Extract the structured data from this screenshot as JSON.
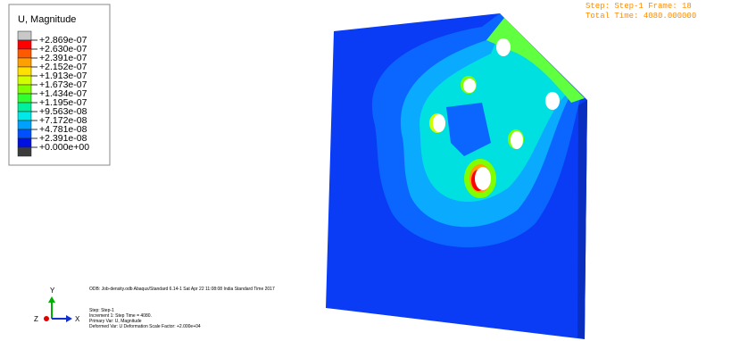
{
  "legend": {
    "title": "U, Magnitude",
    "labels": [
      "+2.869e-07",
      "+2.630e-07",
      "+2.391e-07",
      "+2.152e-07",
      "+1.913e-07",
      "+1.673e-07",
      "+1.434e-07",
      "+1.195e-07",
      "+9.563e-08",
      "+7.172e-08",
      "+4.781e-08",
      "+2.391e-08",
      "+0.000e+00"
    ],
    "colors": [
      "#c8c8c8",
      "#ff0000",
      "#ff5a00",
      "#ffa000",
      "#ffe000",
      "#d0ff00",
      "#80ff00",
      "#30ff30",
      "#00f0a0",
      "#00e8e8",
      "#00a0ff",
      "#0050ff",
      "#0010e0",
      "#3c3c3c"
    ]
  },
  "status": {
    "step_frame": "Step: Step-1   Frame: 18",
    "total_time": "Total Time: 4080.000000"
  },
  "info": {
    "odb": "ODB: Job-density.odb    Abaqus/Standard 6.14-1    Sat Apr 22 11:08:08 India Standard Time 2017",
    "step": "Step: Step-1",
    "increment": "Increment     1: Step Time =    4080.",
    "primary": "Primary Var: U, Magnitude",
    "deformed": "Deformed Var: U   Deformation Scale Factor: +2.000e+04"
  },
  "triad": {
    "x": "X",
    "y": "Y",
    "z": "Z"
  }
}
